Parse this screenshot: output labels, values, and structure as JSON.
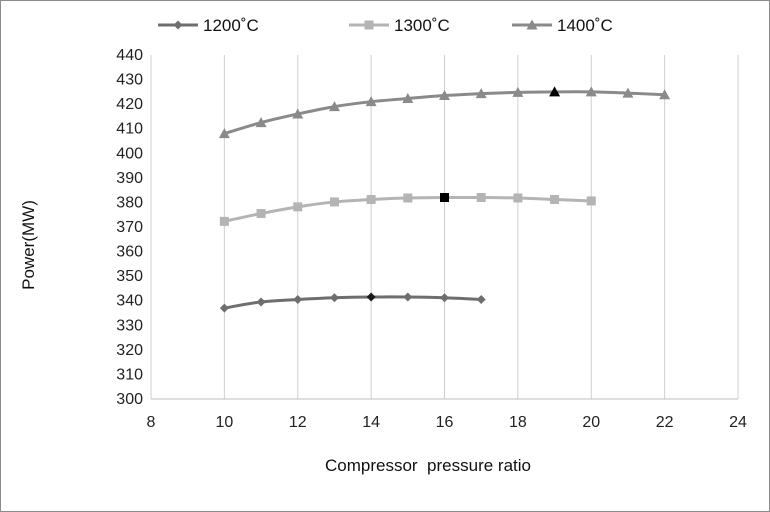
{
  "chart_data": {
    "type": "line",
    "title": "",
    "xlabel": "Compressor  pressure ratio",
    "ylabel": "Power(MW)",
    "xlim": [
      8,
      24
    ],
    "ylim": [
      300,
      440
    ],
    "x_ticks": [
      "8",
      "10",
      "12",
      "14",
      "16",
      "18",
      "20",
      "22",
      "24"
    ],
    "y_ticks": [
      "300",
      "310",
      "320",
      "330",
      "340",
      "350",
      "360",
      "370",
      "380",
      "390",
      "400",
      "410",
      "420",
      "430",
      "440"
    ],
    "grid": "vertical",
    "legend_position": "top",
    "series": [
      {
        "name": "1200˚C",
        "color": "#6e6e6e",
        "marker": "diamond",
        "x": [
          10,
          11,
          12,
          13,
          14,
          15,
          16,
          17
        ],
        "y": [
          337,
          339.5,
          340.5,
          341.2,
          341.5,
          341.5,
          341.2,
          340.5
        ],
        "highlight_x": 14,
        "highlight_color": "#1a1a1a"
      },
      {
        "name": "1300˚C",
        "color": "#b4b4b4",
        "marker": "square",
        "x": [
          10,
          11,
          12,
          13,
          14,
          15,
          16,
          17,
          18,
          19,
          20
        ],
        "y": [
          372.3,
          375.5,
          378.2,
          380.2,
          381.2,
          381.8,
          382,
          382,
          381.8,
          381.2,
          380.6
        ],
        "highlight_x": 16,
        "highlight_color": "#000000"
      },
      {
        "name": "1400˚C",
        "color": "#8a8a8a",
        "marker": "triangle",
        "x": [
          10,
          11,
          12,
          13,
          14,
          15,
          16,
          17,
          18,
          19,
          20,
          21,
          22
        ],
        "y": [
          408,
          412.5,
          416,
          419,
          421,
          422.3,
          423.5,
          424.3,
          424.8,
          425,
          425,
          424.5,
          423.8
        ],
        "highlight_x": 19,
        "highlight_color": "#000000"
      }
    ]
  }
}
